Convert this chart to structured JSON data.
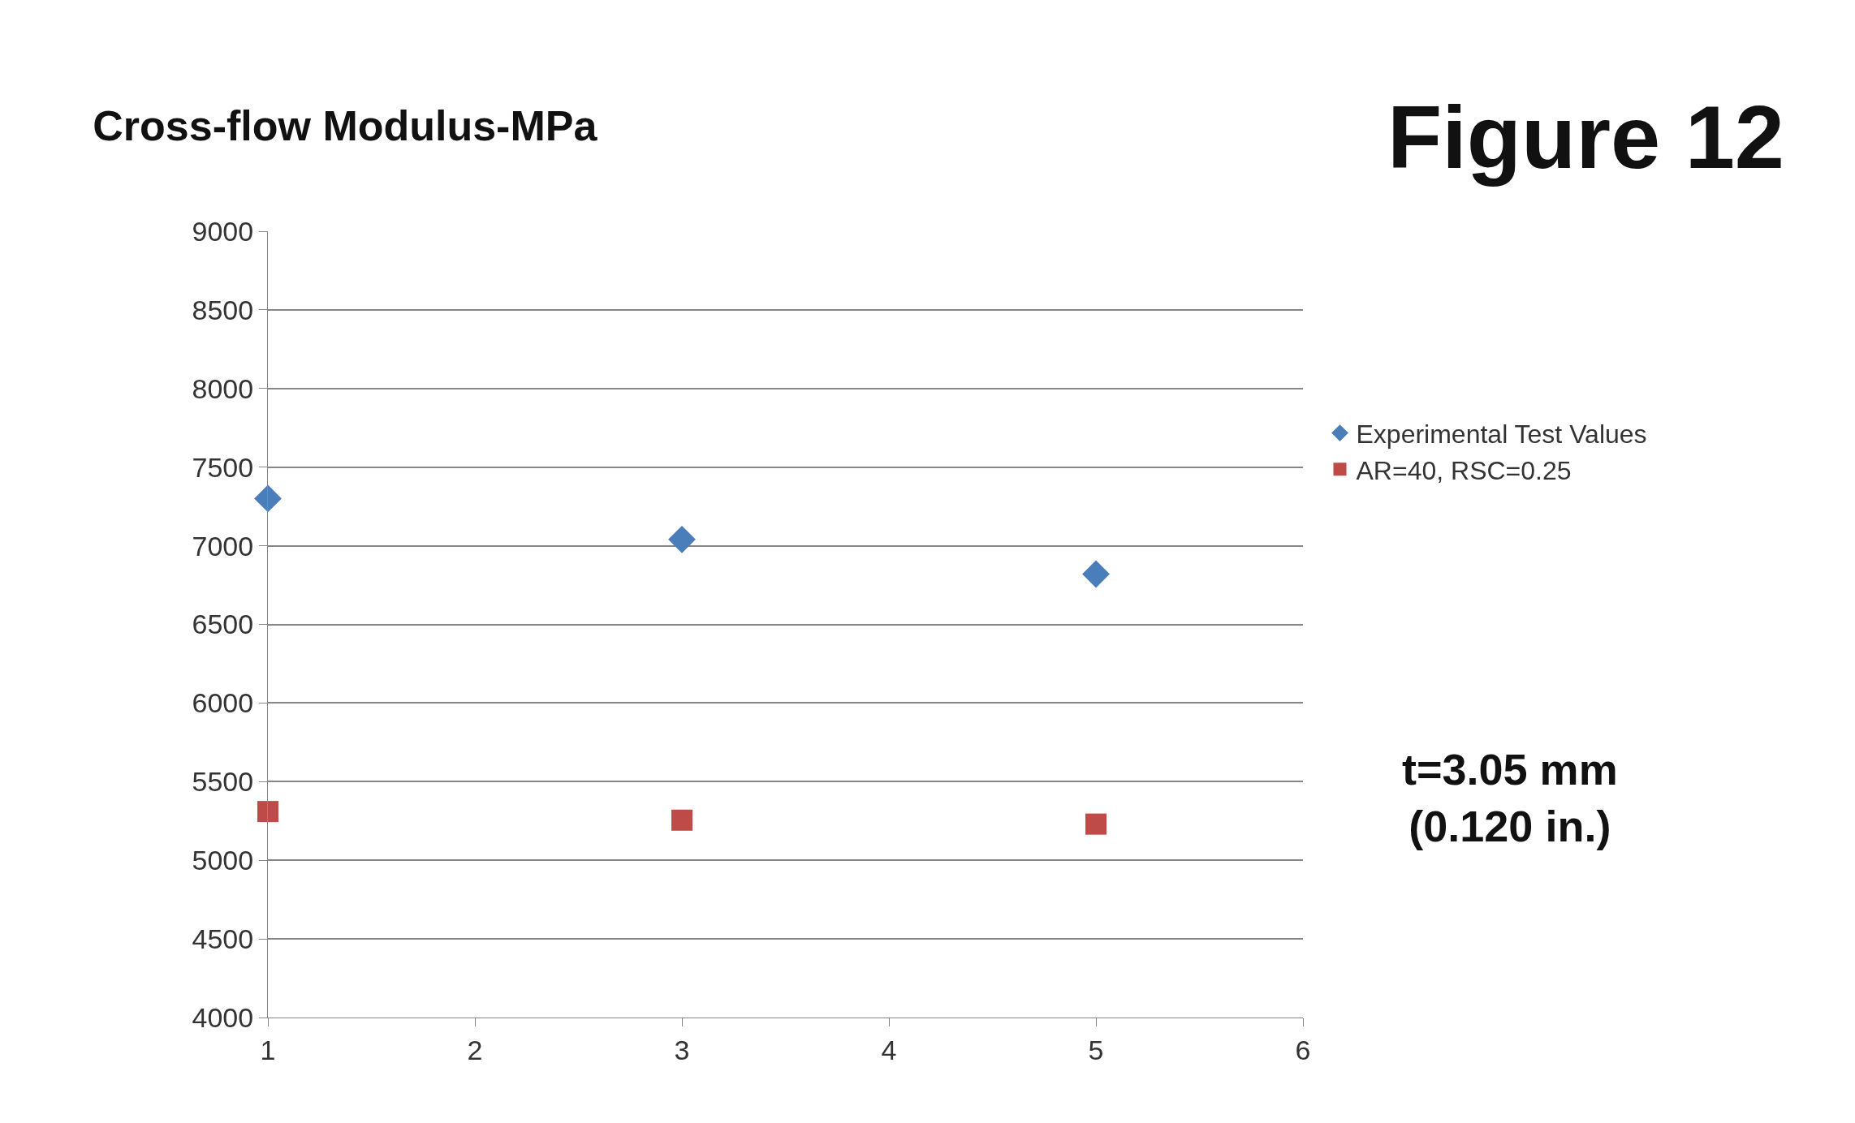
{
  "chart_data": {
    "type": "scatter",
    "title": "Cross-flow Modulus-MPa",
    "x": [
      1,
      3,
      5
    ],
    "series": [
      {
        "name": "Experimental Test Values",
        "color": "#4a7ebb",
        "marker": "diamond",
        "values": [
          7300,
          7040,
          6820
        ]
      },
      {
        "name": "AR=40, RSC=0.25",
        "color": "#be4b48",
        "marker": "square",
        "values": [
          5310,
          5255,
          5230
        ]
      }
    ],
    "xlim": [
      1,
      6
    ],
    "xticks": [
      1,
      2,
      3,
      4,
      5,
      6
    ],
    "ylim": [
      4000,
      9000
    ],
    "yticks": [
      4000,
      4500,
      5000,
      5500,
      6000,
      6500,
      7000,
      7500,
      8000,
      8500,
      9000
    ],
    "grid": "y",
    "legend": "right",
    "annotations": [
      "Figure 12",
      "t=3.05 mm\n(0.120 in.)"
    ]
  }
}
